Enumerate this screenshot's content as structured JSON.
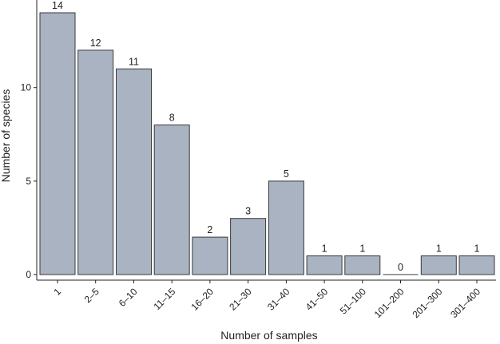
{
  "chart_data": {
    "type": "bar",
    "xlabel": "Number of samples",
    "ylabel": "Number of species",
    "categories": [
      "1",
      "2–5",
      "6–10",
      "11–15",
      "16–20",
      "21–30",
      "31–40",
      "41–50",
      "51–100",
      "101–200",
      "201–300",
      "301–400"
    ],
    "values": [
      14,
      12,
      11,
      8,
      2,
      3,
      5,
      1,
      1,
      0,
      1,
      1
    ],
    "data_labels": [
      "14",
      "12",
      "11",
      "8",
      "2",
      "3",
      "5",
      "1",
      "1",
      "0",
      "1",
      "1"
    ],
    "y_ticks": [
      0,
      5,
      10
    ],
    "y_tick_labels": [
      "0",
      "5",
      "10"
    ],
    "ylim": [
      0,
      14.6
    ],
    "grid": false,
    "legend": "none",
    "bar_color": "#a9b3c1",
    "bar_edge_color": "#3a3a3a"
  }
}
